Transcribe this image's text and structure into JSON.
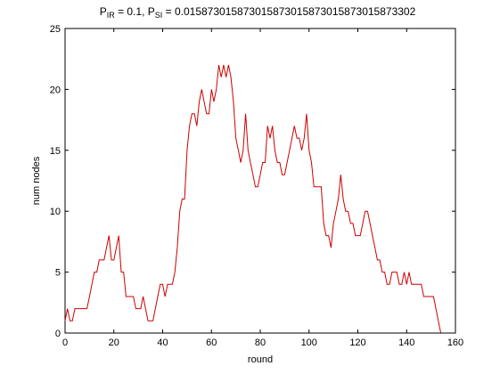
{
  "chart_data": {
    "type": "line",
    "title": {
      "p1_main": "P",
      "p1_sub": "IR",
      "p1_value": " = 0.1, ",
      "p2_main": "P",
      "p2_sub": "SI",
      "p2_value": " = 0.015873015873015873015873015873015873302"
    },
    "xlabel": "round",
    "ylabel": "num nodes",
    "xlim": [
      0,
      160
    ],
    "ylim": [
      0,
      25
    ],
    "xticks": [
      0,
      20,
      40,
      60,
      80,
      100,
      120,
      140,
      160
    ],
    "yticks": [
      0,
      5,
      10,
      15,
      20,
      25
    ],
    "grid": false,
    "line_color": "#cc0000",
    "series": [
      {
        "x": [
          0,
          1,
          2,
          3,
          4,
          5,
          6,
          7,
          8,
          9,
          10,
          11,
          12,
          13,
          14,
          15,
          16,
          17,
          18,
          19,
          20,
          21,
          22,
          23,
          24,
          25,
          26,
          27,
          28,
          29,
          30,
          31,
          32,
          33,
          34,
          35,
          36,
          37,
          38,
          39,
          40,
          41,
          42,
          43,
          44,
          45,
          46,
          47,
          48,
          49,
          50,
          51,
          52,
          53,
          54,
          55,
          56,
          57,
          58,
          59,
          60,
          61,
          62,
          63,
          64,
          65,
          66,
          67,
          68,
          69,
          70,
          71,
          72,
          73,
          74,
          75,
          76,
          77,
          78,
          79,
          80,
          81,
          82,
          83,
          84,
          85,
          86,
          87,
          88,
          89,
          90,
          91,
          92,
          93,
          94,
          95,
          96,
          97,
          98,
          99,
          100,
          101,
          102,
          103,
          104,
          105,
          106,
          107,
          108,
          109,
          110,
          111,
          112,
          113,
          114,
          115,
          116,
          117,
          118,
          119,
          120,
          121,
          122,
          123,
          124,
          125,
          126,
          127,
          128,
          129,
          130,
          131,
          132,
          133,
          134,
          135,
          136,
          137,
          138,
          139,
          140,
          141,
          142,
          143,
          144,
          145,
          146,
          147,
          148,
          149,
          150,
          151,
          152,
          153,
          154
        ],
        "values": [
          1,
          2,
          1,
          1,
          2,
          2,
          2,
          2,
          2,
          2,
          3,
          4,
          5,
          5,
          6,
          6,
          6,
          7,
          8,
          6,
          6,
          7,
          8,
          5,
          5,
          3,
          3,
          3,
          3,
          2,
          2,
          2,
          3,
          2,
          1,
          1,
          1,
          2,
          3,
          4,
          4,
          3,
          4,
          4,
          4,
          5,
          7,
          10,
          11,
          11,
          15,
          17,
          18,
          18,
          17,
          19,
          20,
          19,
          18,
          18,
          20,
          19,
          20,
          22,
          21,
          22,
          21,
          22,
          21,
          19,
          16,
          15,
          14,
          15,
          18,
          15,
          14,
          13,
          12,
          12,
          13,
          14,
          14,
          17,
          16,
          17,
          15,
          14,
          14,
          13,
          13,
          14,
          15,
          16,
          17,
          16,
          16,
          15,
          16,
          18,
          15,
          14,
          12,
          12,
          12,
          12,
          9,
          8,
          8,
          7,
          9,
          10,
          11,
          13,
          11,
          10,
          10,
          9,
          9,
          8,
          8,
          8,
          9,
          10,
          10,
          9,
          8,
          7,
          6,
          6,
          5,
          5,
          4,
          4,
          5,
          5,
          5,
          4,
          4,
          5,
          4,
          5,
          4,
          4,
          4,
          4,
          4,
          3,
          3,
          3,
          3,
          3,
          2,
          1,
          0
        ]
      }
    ]
  }
}
